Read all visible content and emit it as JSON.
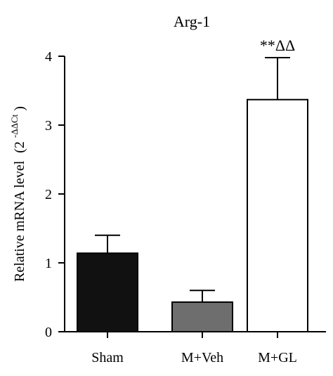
{
  "chart_data": {
    "type": "bar",
    "title": "Arg-1",
    "ylabel": "Relative mRNA level",
    "ylabel_formula": {
      "prefix": "(2",
      "superscript": "-ΔΔCt",
      "suffix": ")"
    },
    "categories": [
      "Sham",
      "M+Veh",
      "M+GL"
    ],
    "values": [
      1.14,
      0.43,
      3.37
    ],
    "errors": [
      0.26,
      0.17,
      0.61
    ],
    "colors": [
      "#111111",
      "#6e6e6e",
      "#ffffff"
    ],
    "annotations": [
      "",
      "",
      "**ΔΔ"
    ],
    "ylim": [
      0,
      4
    ],
    "yticks": [
      "0",
      "1",
      "2",
      "3",
      "4"
    ],
    "grid": false
  }
}
